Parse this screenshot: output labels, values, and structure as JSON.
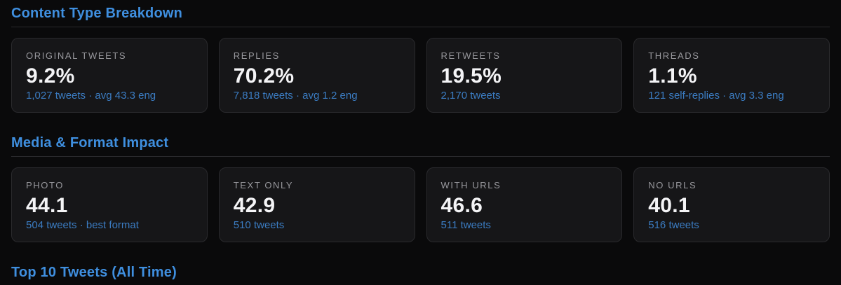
{
  "colors": {
    "page_background": "#0a0a0b",
    "card_background": "#161618",
    "card_border": "#2a2a2d",
    "heading_blue": "#3f8fdf",
    "link_blue": "#3b7cc2",
    "label_gray": "#98989d",
    "value_white": "#f4f4f6",
    "divider_gray": "#29292c"
  },
  "sections": [
    {
      "title": "Content Type Breakdown",
      "cards": [
        {
          "label": "ORIGINAL TWEETS",
          "value": "9.2%",
          "subtext": "1,027 tweets · avg 43.3 eng"
        },
        {
          "label": "REPLIES",
          "value": "70.2%",
          "subtext": "7,818 tweets · avg 1.2 eng"
        },
        {
          "label": "RETWEETS",
          "value": "19.5%",
          "subtext": "2,170 tweets"
        },
        {
          "label": "THREADS",
          "value": "1.1%",
          "subtext": "121 self-replies · avg 3.3 eng"
        }
      ]
    },
    {
      "title": "Media & Format Impact",
      "cards": [
        {
          "label": "PHOTO",
          "value": "44.1",
          "subtext": "504 tweets · best format"
        },
        {
          "label": "TEXT ONLY",
          "value": "42.9",
          "subtext": "510 tweets"
        },
        {
          "label": "WITH URLS",
          "value": "46.6",
          "subtext": "511 tweets"
        },
        {
          "label": "NO URLS",
          "value": "40.1",
          "subtext": "516 tweets"
        }
      ]
    },
    {
      "title": "Top 10 Tweets (All Time)",
      "cards": []
    }
  ]
}
